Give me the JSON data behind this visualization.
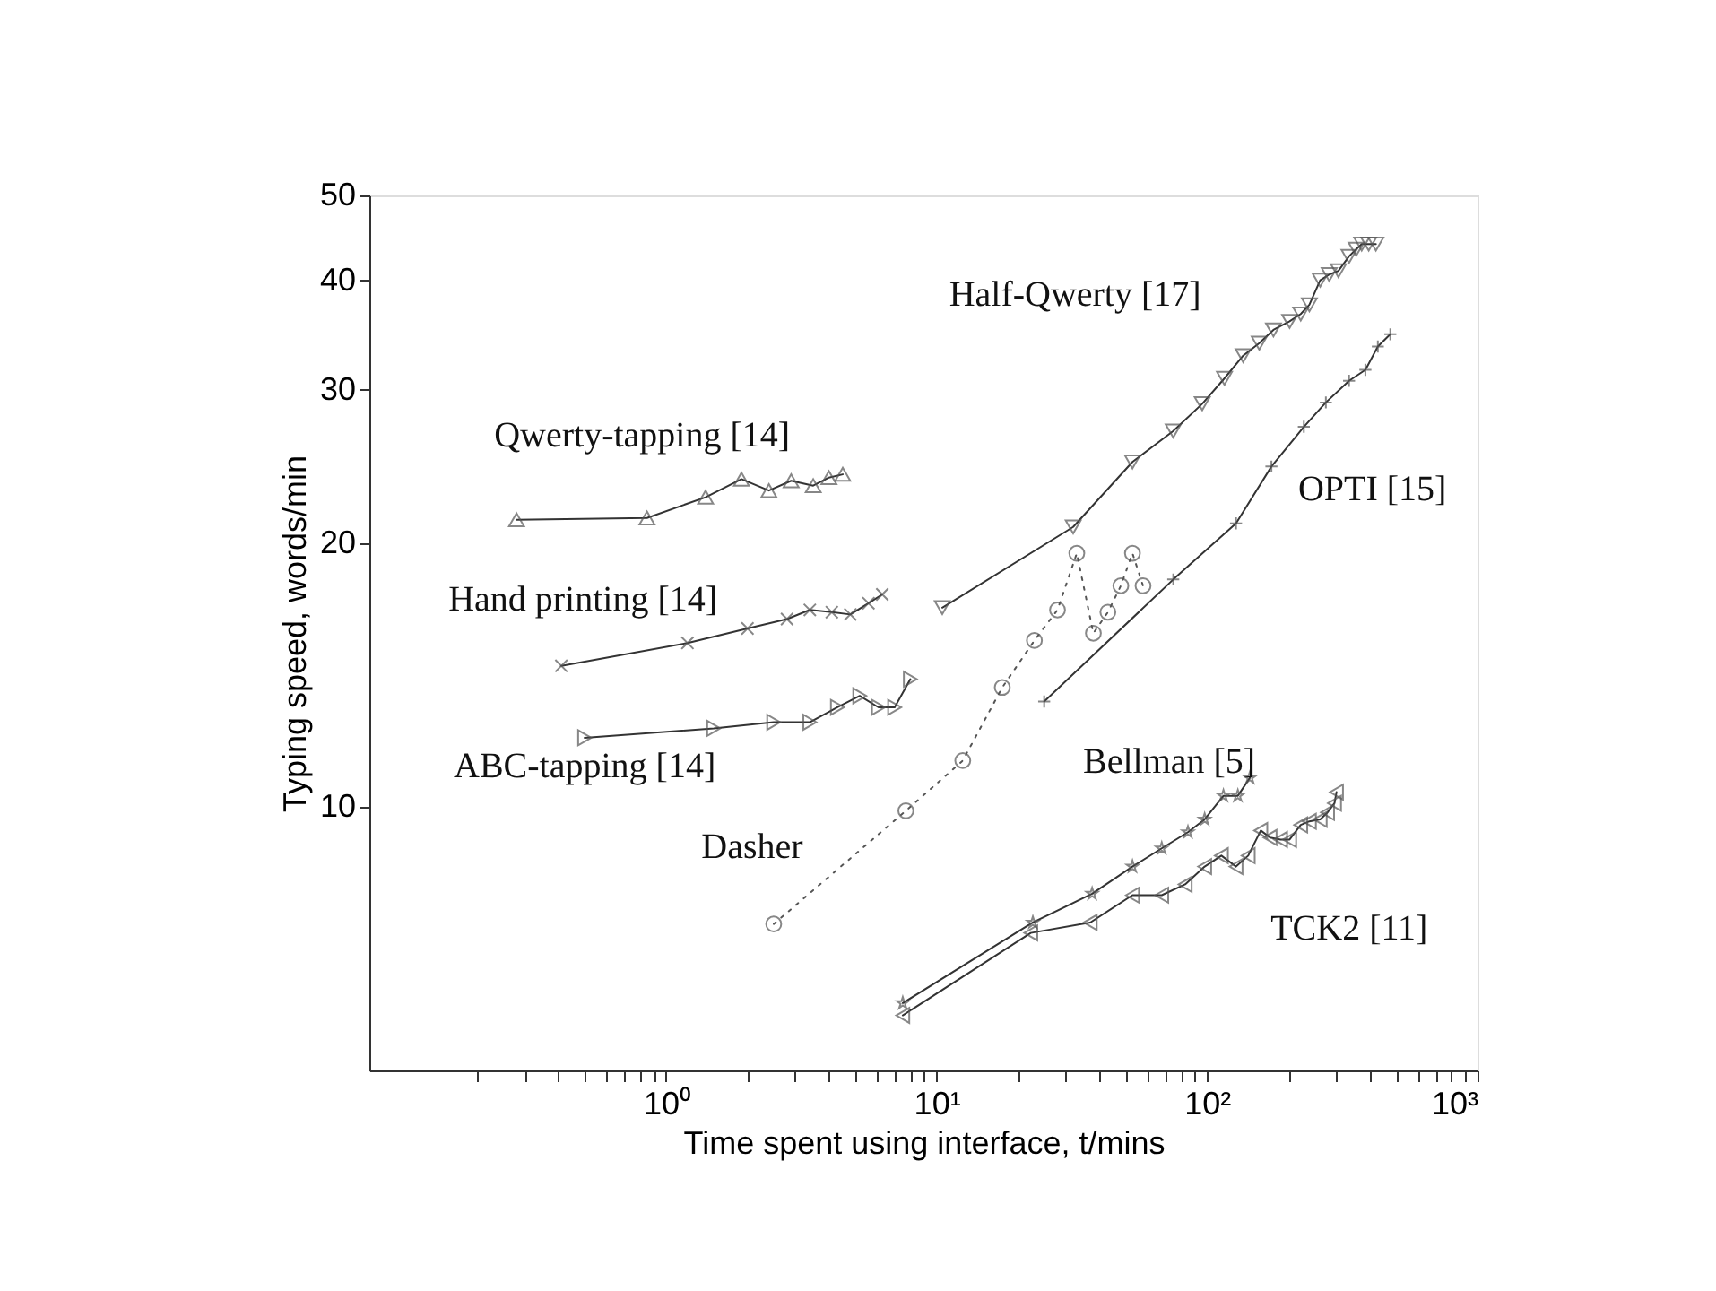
{
  "chart_data": {
    "type": "line",
    "xlabel": "Time spent using interface, t/mins",
    "ylabel": "Typing speed, words/min",
    "log": "xy",
    "grid": false,
    "legend": false,
    "xlim": [
      0.08,
      1000
    ],
    "ylim": [
      5,
      50
    ],
    "xticks": [
      {
        "value": 0.2,
        "label": null
      },
      {
        "value": 0.3,
        "label": null
      },
      {
        "value": 0.4,
        "label": null
      },
      {
        "value": 0.5,
        "label": null
      },
      {
        "value": 0.6,
        "label": null
      },
      {
        "value": 0.7,
        "label": null
      },
      {
        "value": 0.8,
        "label": null
      },
      {
        "value": 0.9,
        "label": null
      },
      {
        "value": 1,
        "label": "10⁰"
      },
      {
        "value": 2,
        "label": null
      },
      {
        "value": 3,
        "label": null
      },
      {
        "value": 4,
        "label": null
      },
      {
        "value": 5,
        "label": null
      },
      {
        "value": 6,
        "label": null
      },
      {
        "value": 7,
        "label": null
      },
      {
        "value": 8,
        "label": null
      },
      {
        "value": 9,
        "label": null
      },
      {
        "value": 10,
        "label": "10¹"
      },
      {
        "value": 20,
        "label": null
      },
      {
        "value": 30,
        "label": null
      },
      {
        "value": 40,
        "label": null
      },
      {
        "value": 50,
        "label": null
      },
      {
        "value": 60,
        "label": null
      },
      {
        "value": 70,
        "label": null
      },
      {
        "value": 80,
        "label": null
      },
      {
        "value": 90,
        "label": null
      },
      {
        "value": 100,
        "label": "10²"
      },
      {
        "value": 200,
        "label": null
      },
      {
        "value": 300,
        "label": null
      },
      {
        "value": 400,
        "label": null
      },
      {
        "value": 500,
        "label": null
      },
      {
        "value": 600,
        "label": null
      },
      {
        "value": 700,
        "label": null
      },
      {
        "value": 800,
        "label": null
      },
      {
        "value": 900,
        "label": null
      },
      {
        "value": 1000,
        "label": "10³"
      }
    ],
    "yticks": [
      10,
      20,
      30,
      40,
      50
    ],
    "series": [
      {
        "name": "Qwerty-tapping [14]",
        "color": "#333333",
        "marker": "triangle",
        "line_style": "solid",
        "x": [
          0.28,
          0.85,
          1.4,
          1.9,
          2.4,
          2.9,
          3.5,
          4.0,
          4.5
        ],
        "values": [
          21.3,
          21.4,
          22.6,
          23.7,
          23.0,
          23.6,
          23.3,
          23.8,
          24.0
        ]
      },
      {
        "name": "Hand printing [14]",
        "color": "#333333",
        "marker": "x",
        "line_style": "solid",
        "x": [
          0.41,
          1.2,
          2.0,
          2.8,
          3.4,
          4.1,
          4.8,
          5.6,
          6.3
        ],
        "values": [
          14.5,
          15.4,
          16.0,
          16.4,
          16.8,
          16.7,
          16.6,
          17.1,
          17.5
        ]
      },
      {
        "name": "ABC-tapping [14]",
        "color": "#333333",
        "marker": "triangle-right",
        "line_style": "solid",
        "x": [
          0.5,
          1.5,
          2.5,
          3.4,
          4.3,
          5.2,
          6.1,
          7.0,
          8.0
        ],
        "values": [
          12.0,
          12.3,
          12.5,
          12.5,
          13.0,
          13.4,
          13.0,
          13.0,
          14.0
        ]
      },
      {
        "name": "Dasher",
        "color": "#555555",
        "marker": "circle",
        "line_style": "dotted",
        "x": [
          2.5,
          7.7,
          12.5,
          17.5,
          23,
          28,
          33,
          38,
          43,
          48,
          53,
          58
        ],
        "values": [
          7.35,
          9.9,
          11.3,
          13.7,
          15.5,
          16.8,
          19.5,
          15.8,
          16.7,
          17.9,
          19.5,
          17.9
        ]
      },
      {
        "name": "Half-Qwerty [17]",
        "color": "#333333",
        "marker": "triangle-down",
        "line_style": "solid",
        "x": [
          10.5,
          32,
          53,
          75,
          96,
          116,
          136,
          156,
          176,
          202,
          222,
          239,
          262,
          283,
          306,
          335,
          356,
          373,
          396,
          421
        ],
        "values": [
          16.9,
          20.9,
          24.8,
          26.9,
          28.9,
          30.9,
          32.8,
          33.9,
          35.1,
          35.9,
          36.6,
          37.5,
          40.0,
          40.6,
          41.0,
          42.6,
          43.4,
          44.0,
          44.0,
          44.0
        ]
      },
      {
        "name": "OPTI [15]",
        "color": "#333333",
        "marker": "cross",
        "line_style": "solid",
        "x": [
          25,
          75,
          128,
          173,
          228,
          275,
          335,
          385,
          428,
          476
        ],
        "values": [
          13.2,
          18.2,
          21.1,
          24.5,
          27.2,
          29.0,
          30.7,
          31.6,
          33.6,
          34.7
        ]
      },
      {
        "name": "Bellman [5]",
        "color": "#333333",
        "marker": "star",
        "line_style": "solid",
        "x": [
          7.5,
          22.7,
          37.6,
          53,
          68,
          85,
          98,
          115,
          130,
          144
        ],
        "values": [
          5.97,
          7.38,
          7.96,
          8.55,
          8.97,
          9.36,
          9.68,
          10.3,
          10.3,
          10.8
        ]
      },
      {
        "name": "TCK2 [11]",
        "color": "#333333",
        "marker": "triangle-left",
        "line_style": "solid",
        "x": [
          7.5,
          22.3,
          37,
          53,
          68,
          83,
          98,
          113,
          128,
          142,
          158,
          171,
          187,
          202,
          222,
          239,
          262,
          279,
          296,
          301
        ],
        "values": [
          5.78,
          7.18,
          7.38,
          7.93,
          7.93,
          8.16,
          8.55,
          8.8,
          8.55,
          8.8,
          9.4,
          9.23,
          9.18,
          9.18,
          9.54,
          9.63,
          9.68,
          9.86,
          10.1,
          10.4
        ]
      }
    ]
  }
}
